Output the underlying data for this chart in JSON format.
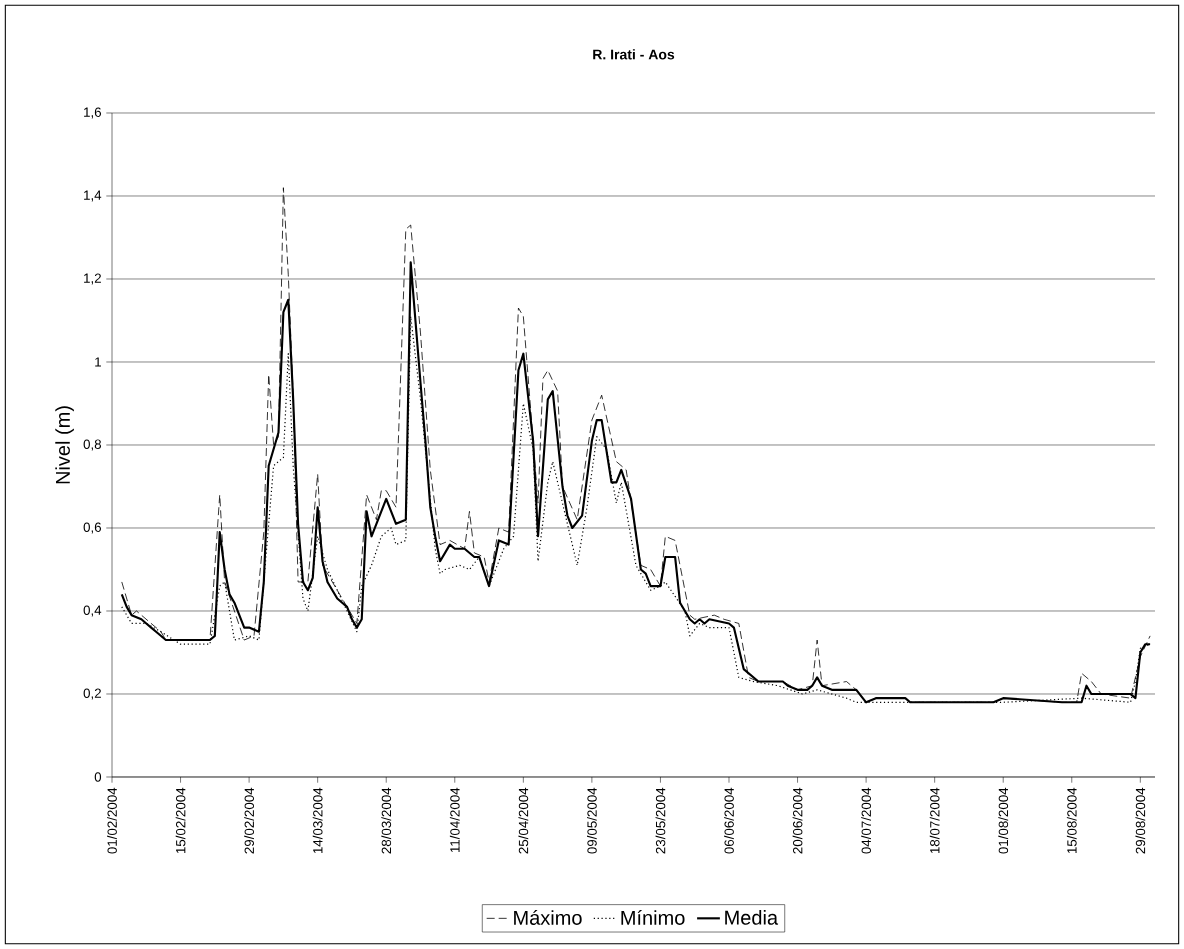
{
  "chart_data": {
    "type": "line",
    "title": "R. Irati - Aos",
    "ylabel": "Nivel (m)",
    "xlim": [
      "2004-02-01",
      "2004-09-01"
    ],
    "xticks": [
      {
        "value": "2004-02-01",
        "label": "01/02/2004"
      },
      {
        "value": "2004-02-15",
        "label": "15/02/2004"
      },
      {
        "value": "2004-02-29",
        "label": "29/02/2004"
      },
      {
        "value": "2004-03-14",
        "label": "14/03/2004"
      },
      {
        "value": "2004-03-28",
        "label": "28/03/2004"
      },
      {
        "value": "2004-04-11",
        "label": "11/04/2004"
      },
      {
        "value": "2004-04-25",
        "label": "25/04/2004"
      },
      {
        "value": "2004-05-09",
        "label": "09/05/2004"
      },
      {
        "value": "2004-05-23",
        "label": "23/05/2004"
      },
      {
        "value": "2004-06-06",
        "label": "06/06/2004"
      },
      {
        "value": "2004-06-20",
        "label": "20/06/2004"
      },
      {
        "value": "2004-07-04",
        "label": "04/07/2004"
      },
      {
        "value": "2004-07-18",
        "label": "18/07/2004"
      },
      {
        "value": "2004-08-01",
        "label": "01/08/2004"
      },
      {
        "value": "2004-08-15",
        "label": "15/08/2004"
      },
      {
        "value": "2004-08-29",
        "label": "29/08/2004"
      }
    ],
    "ylim": [
      0,
      1.6
    ],
    "yticks": [
      0,
      {
        "value": 0.2,
        "label": "0,2"
      },
      {
        "value": 0.4,
        "label": "0,4"
      },
      {
        "value": 0.6,
        "label": "0,6"
      },
      {
        "value": 0.8,
        "label": "0,8"
      },
      1,
      {
        "value": 1.2,
        "label": "1,2"
      },
      {
        "value": 1.4,
        "label": "1,4"
      },
      {
        "value": 1.6,
        "label": "1,6"
      }
    ],
    "grid": "y",
    "legend": "bottom",
    "series": [
      {
        "name": "Máximo",
        "color": "#000000",
        "line_style": "dashed",
        "x": [
          "2004-02-03",
          "2004-02-05",
          "2004-02-06",
          "2004-02-11",
          "2004-02-12",
          "2004-02-21",
          "2004-02-23",
          "2004-02-24",
          "2004-02-26",
          "2004-02-28",
          "2004-03-01",
          "2004-03-03",
          "2004-03-04",
          "2004-03-05",
          "2004-03-06",
          "2004-03-07",
          "2004-03-08",
          "2004-03-09",
          "2004-03-10",
          "2004-03-12",
          "2004-03-14",
          "2004-03-15",
          "2004-03-22",
          "2004-03-24",
          "2004-03-26",
          "2004-03-27",
          "2004-03-28",
          "2004-03-30",
          "2004-04-01",
          "2004-04-02",
          "2004-04-04",
          "2004-04-06",
          "2004-04-08",
          "2004-04-10",
          "2004-04-13",
          "2004-04-14",
          "2004-04-15",
          "2004-04-17",
          "2004-04-18",
          "2004-04-20",
          "2004-04-22",
          "2004-04-24",
          "2004-04-25",
          "2004-04-28",
          "2004-04-29",
          "2004-04-30",
          "2004-05-02",
          "2004-05-03",
          "2004-05-06",
          "2004-05-09",
          "2004-05-11",
          "2004-05-14",
          "2004-05-16",
          "2004-05-19",
          "2004-05-21",
          "2004-05-23",
          "2004-05-24",
          "2004-05-26",
          "2004-05-29",
          "2004-05-30",
          "2004-06-03",
          "2004-06-05",
          "2004-06-08",
          "2004-06-10",
          "2004-06-12",
          "2004-06-17",
          "2004-06-20",
          "2004-06-23",
          "2004-06-24",
          "2004-06-25",
          "2004-06-30",
          "2004-07-02",
          "2004-07-04",
          "2004-07-06",
          "2004-07-12",
          "2004-07-13",
          "2004-07-30",
          "2004-08-01",
          "2004-08-13",
          "2004-08-16",
          "2004-08-17",
          "2004-08-19",
          "2004-08-21",
          "2004-08-27",
          "2004-08-29",
          "2004-08-31"
        ],
        "values": [
          0.47,
          0.39,
          0.4,
          0.35,
          0.33,
          0.33,
          0.68,
          0.47,
          0.4,
          0.33,
          0.34,
          0.59,
          0.97,
          0.8,
          0.82,
          1.42,
          1.21,
          0.92,
          0.47,
          0.47,
          0.73,
          0.51,
          0.37,
          0.68,
          0.62,
          0.69,
          0.69,
          0.65,
          1.32,
          1.33,
          1.07,
          0.74,
          0.56,
          0.57,
          0.55,
          0.64,
          0.54,
          0.53,
          0.47,
          0.6,
          0.59,
          1.13,
          1.11,
          0.66,
          0.96,
          0.98,
          0.93,
          0.7,
          0.62,
          0.86,
          0.92,
          0.76,
          0.74,
          0.51,
          0.5,
          0.46,
          0.58,
          0.57,
          0.39,
          0.38,
          0.39,
          0.38,
          0.37,
          0.24,
          0.23,
          0.23,
          0.21,
          0.22,
          0.33,
          0.22,
          0.23,
          0.21,
          0.18,
          0.19,
          0.19,
          0.18,
          0.18,
          0.19,
          0.18,
          0.18,
          0.25,
          0.23,
          0.2,
          0.19,
          0.29,
          0.34
        ]
      },
      {
        "name": "Mínimo",
        "color": "#000000",
        "line_style": "dotted",
        "x": [
          "2004-02-03",
          "2004-02-05",
          "2004-02-08",
          "2004-02-11",
          "2004-02-15",
          "2004-02-21",
          "2004-02-23",
          "2004-02-24",
          "2004-02-26",
          "2004-02-29",
          "2004-03-02",
          "2004-03-03",
          "2004-03-05",
          "2004-03-07",
          "2004-03-08",
          "2004-03-09",
          "2004-03-11",
          "2004-03-12",
          "2004-03-14",
          "2004-03-16",
          "2004-03-22",
          "2004-03-23",
          "2004-03-25",
          "2004-03-27",
          "2004-03-29",
          "2004-03-30",
          "2004-04-01",
          "2004-04-02",
          "2004-04-04",
          "2004-04-07",
          "2004-04-08",
          "2004-04-09",
          "2004-04-12",
          "2004-04-14",
          "2004-04-16",
          "2004-04-18",
          "2004-04-21",
          "2004-04-23",
          "2004-04-25",
          "2004-04-27",
          "2004-04-28",
          "2004-04-30",
          "2004-05-01",
          "2004-05-03",
          "2004-05-06",
          "2004-05-08",
          "2004-05-10",
          "2004-05-12",
          "2004-05-14",
          "2004-05-15",
          "2004-05-18",
          "2004-05-21",
          "2004-05-23",
          "2004-05-24",
          "2004-05-28",
          "2004-05-29",
          "2004-05-31",
          "2004-06-02",
          "2004-06-06",
          "2004-06-08",
          "2004-06-11",
          "2004-06-16",
          "2004-06-21",
          "2004-06-24",
          "2004-06-30",
          "2004-07-02",
          "2004-08-01",
          "2004-08-17",
          "2004-08-27",
          "2004-08-28",
          "2004-08-29",
          "2004-08-31"
        ],
        "values": [
          0.41,
          0.37,
          0.37,
          0.35,
          0.32,
          0.32,
          0.46,
          0.47,
          0.33,
          0.34,
          0.33,
          0.47,
          0.75,
          0.77,
          1.02,
          0.75,
          0.43,
          0.4,
          0.58,
          0.5,
          0.35,
          0.46,
          0.51,
          0.58,
          0.6,
          0.56,
          0.57,
          1.11,
          0.91,
          0.55,
          0.49,
          0.5,
          0.51,
          0.5,
          0.53,
          0.46,
          0.55,
          0.58,
          0.9,
          0.79,
          0.52,
          0.71,
          0.76,
          0.66,
          0.51,
          0.65,
          0.82,
          0.79,
          0.66,
          0.71,
          0.51,
          0.45,
          0.46,
          0.47,
          0.4,
          0.34,
          0.37,
          0.36,
          0.36,
          0.24,
          0.23,
          0.22,
          0.2,
          0.21,
          0.19,
          0.18,
          0.18,
          0.19,
          0.18,
          0.23,
          0.31,
          0.32
        ]
      },
      {
        "name": "Media",
        "color": "#000000",
        "line_style": "solid",
        "x": [
          "2004-02-03",
          "2004-02-04",
          "2004-02-05",
          "2004-02-07",
          "2004-02-08",
          "2004-02-09",
          "2004-02-10",
          "2004-02-12",
          "2004-02-21",
          "2004-02-22",
          "2004-02-23",
          "2004-02-24",
          "2004-02-25",
          "2004-02-26",
          "2004-02-28",
          "2004-02-29",
          "2004-03-02",
          "2004-03-03",
          "2004-03-04",
          "2004-03-06",
          "2004-03-07",
          "2004-03-08",
          "2004-03-09",
          "2004-03-10",
          "2004-03-11",
          "2004-03-12",
          "2004-03-13",
          "2004-03-14",
          "2004-03-15",
          "2004-03-16",
          "2004-03-18",
          "2004-03-20",
          "2004-03-21",
          "2004-03-22",
          "2004-03-23",
          "2004-03-24",
          "2004-03-25",
          "2004-03-27",
          "2004-03-28",
          "2004-03-30",
          "2004-04-01",
          "2004-04-02",
          "2004-04-04",
          "2004-04-05",
          "2004-04-06",
          "2004-04-07",
          "2004-04-08",
          "2004-04-10",
          "2004-04-11",
          "2004-04-13",
          "2004-04-15",
          "2004-04-16",
          "2004-04-18",
          "2004-04-20",
          "2004-04-22",
          "2004-04-24",
          "2004-04-25",
          "2004-04-27",
          "2004-04-28",
          "2004-04-30",
          "2004-05-01",
          "2004-05-03",
          "2004-05-04",
          "2004-05-05",
          "2004-05-07",
          "2004-05-09",
          "2004-05-10",
          "2004-05-11",
          "2004-05-13",
          "2004-05-14",
          "2004-05-15",
          "2004-05-17",
          "2004-05-19",
          "2004-05-20",
          "2004-05-21",
          "2004-05-23",
          "2004-05-24",
          "2004-05-26",
          "2004-05-27",
          "2004-05-29",
          "2004-05-30",
          "2004-05-31",
          "2004-06-01",
          "2004-06-02",
          "2004-06-06",
          "2004-06-07",
          "2004-06-09",
          "2004-06-12",
          "2004-06-17",
          "2004-06-18",
          "2004-06-20",
          "2004-06-22",
          "2004-06-23",
          "2004-06-24",
          "2004-06-25",
          "2004-06-27",
          "2004-07-02",
          "2004-07-04",
          "2004-07-06",
          "2004-07-12",
          "2004-07-13",
          "2004-07-30",
          "2004-08-01",
          "2004-08-13",
          "2004-08-17",
          "2004-08-18",
          "2004-08-19",
          "2004-08-27",
          "2004-08-28",
          "2004-08-29",
          "2004-08-30",
          "2004-08-31"
        ],
        "values": [
          0.44,
          0.41,
          0.39,
          0.38,
          0.37,
          0.36,
          0.35,
          0.33,
          0.33,
          0.34,
          0.59,
          0.5,
          0.44,
          0.42,
          0.36,
          0.36,
          0.35,
          0.47,
          0.75,
          0.83,
          1.12,
          1.15,
          0.91,
          0.61,
          0.47,
          0.45,
          0.48,
          0.65,
          0.52,
          0.47,
          0.43,
          0.41,
          0.38,
          0.36,
          0.38,
          0.64,
          0.58,
          0.64,
          0.67,
          0.61,
          0.62,
          1.24,
          0.95,
          0.81,
          0.65,
          0.58,
          0.52,
          0.56,
          0.55,
          0.55,
          0.53,
          0.53,
          0.46,
          0.57,
          0.56,
          0.98,
          1.02,
          0.81,
          0.58,
          0.91,
          0.93,
          0.7,
          0.63,
          0.6,
          0.63,
          0.81,
          0.86,
          0.86,
          0.71,
          0.71,
          0.74,
          0.67,
          0.5,
          0.49,
          0.46,
          0.46,
          0.53,
          0.53,
          0.42,
          0.38,
          0.37,
          0.38,
          0.37,
          0.38,
          0.37,
          0.36,
          0.26,
          0.23,
          0.23,
          0.22,
          0.21,
          0.21,
          0.22,
          0.24,
          0.22,
          0.21,
          0.21,
          0.18,
          0.19,
          0.19,
          0.18,
          0.18,
          0.19,
          0.18,
          0.18,
          0.22,
          0.2,
          0.2,
          0.19,
          0.3,
          0.32,
          0.32
        ]
      }
    ]
  }
}
